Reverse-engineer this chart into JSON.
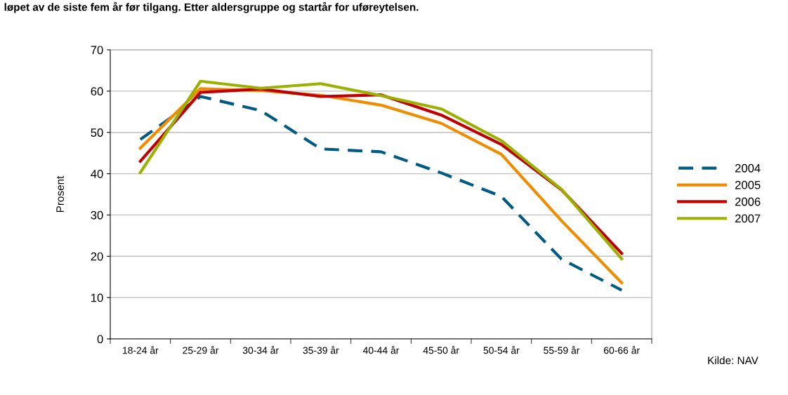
{
  "chart_data": {
    "type": "line",
    "title": "løpet av de siste fem år før tilgang. Etter aldersgruppe og startår for uføreytelsen.",
    "ylabel": "Prosent",
    "categories": [
      "18-24 år",
      "25-29 år",
      "30-34 år",
      "35-39 år",
      "40-44 år",
      "45-50 år",
      "50-54 år",
      "55-59 år",
      "60-66 år"
    ],
    "series": [
      {
        "name": "2004",
        "color": "#005a82",
        "line_style": "dashed",
        "values": [
          48.3,
          58.7,
          55.3,
          46.0,
          45.3,
          40.2,
          34.5,
          19.3,
          11.8
        ]
      },
      {
        "name": "2005",
        "color": "#f08c00",
        "values": [
          46.2,
          60.6,
          60.1,
          59.0,
          56.6,
          52.2,
          44.7,
          28.6,
          13.6
        ]
      },
      {
        "name": "2006",
        "color": "#c00000",
        "values": [
          43.0,
          59.7,
          60.5,
          58.7,
          59.1,
          54.2,
          47.1,
          36.1,
          20.7
        ]
      },
      {
        "name": "2007",
        "color": "#9cb000",
        "values": [
          40.3,
          62.4,
          60.7,
          61.8,
          58.9,
          55.7,
          48.0,
          36.2,
          19.4
        ]
      }
    ],
    "ylim": [
      0,
      70
    ],
    "yticks": [
      0,
      10,
      20,
      30,
      40,
      50,
      60,
      70
    ],
    "grid": "y",
    "legend": "right",
    "line_style": "solid",
    "marker": "none",
    "annotations": [
      "Kilde: NAV"
    ]
  }
}
